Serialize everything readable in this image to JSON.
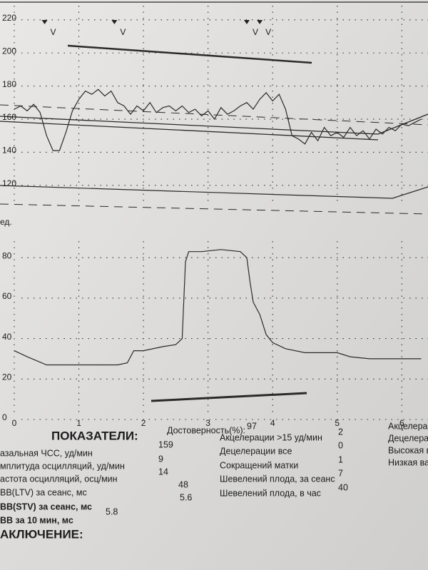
{
  "fhr_chart": {
    "type": "line",
    "color": "#2a2a2a",
    "xlim": [
      0,
      6.35
    ],
    "xticks": [
      0,
      1,
      2,
      3,
      4,
      5,
      6
    ],
    "ylim": [
      107,
      232
    ],
    "yticks": [
      120,
      140,
      160,
      180,
      200,
      220
    ],
    "grid": true,
    "x": [
      0,
      0.1,
      0.2,
      0.3,
      0.4,
      0.5,
      0.6,
      0.7,
      0.8,
      0.9,
      1,
      1.1,
      1.2,
      1.3,
      1.4,
      1.5,
      1.6,
      1.7,
      1.8,
      1.9,
      2,
      2.1,
      2.2,
      2.3,
      2.4,
      2.5,
      2.6,
      2.7,
      2.8,
      2.9,
      3,
      3.1,
      3.2,
      3.3,
      3.4,
      3.5,
      3.6,
      3.7,
      3.8,
      3.9,
      4,
      4.1,
      4.2,
      4.3,
      4.4,
      4.5,
      4.6,
      4.7,
      4.8,
      4.9,
      5,
      5.1,
      5.2,
      5.3,
      5.4,
      5.5,
      5.6,
      5.7,
      5.8,
      5.9,
      6,
      6.1,
      6.2,
      6.3
    ],
    "values": [
      166,
      168,
      165,
      169,
      164,
      150,
      141,
      141,
      152,
      165,
      172,
      177,
      175,
      178,
      174,
      177,
      170,
      168,
      163,
      168,
      165,
      170,
      164,
      167,
      168,
      165,
      168,
      164,
      166,
      162,
      165,
      160,
      167,
      163,
      165,
      168,
      170,
      166,
      172,
      176,
      171,
      175,
      166,
      150,
      148,
      145,
      152,
      147,
      155,
      150,
      152,
      149,
      155,
      150,
      153,
      148,
      154,
      151,
      155,
      153,
      157,
      156,
      158,
      160
    ],
    "event_marks": {
      "label": "V",
      "x": [
        0.47,
        1.55,
        3.6,
        3.8
      ]
    }
  },
  "toco_chart": {
    "type": "line",
    "color": "#2a2a2a",
    "ylabel": "ед.",
    "xlim": [
      0,
      6.35
    ],
    "xticks": [
      0,
      1,
      2,
      3,
      4,
      5,
      6
    ],
    "ylim": [
      0,
      91
    ],
    "yticks": [
      0,
      20,
      40,
      60,
      80
    ],
    "grid": true,
    "x": [
      0,
      0.2,
      0.5,
      0.8,
      1,
      1.3,
      1.6,
      1.75,
      1.85,
      2,
      2.3,
      2.5,
      2.6,
      2.65,
      2.7,
      2.9,
      3.2,
      3.5,
      3.6,
      3.65,
      3.7,
      3.8,
      3.9,
      4.0,
      4.2,
      4.5,
      5,
      5.2,
      5.5,
      6,
      6.3
    ],
    "values": [
      34,
      31,
      27,
      27,
      27,
      27,
      27,
      28,
      34,
      34,
      36,
      37,
      40,
      78,
      83,
      83,
      84,
      83,
      80,
      68,
      58,
      52,
      42,
      38,
      35,
      33,
      33,
      31,
      30,
      30,
      30
    ]
  },
  "indicators": {
    "title": "ПОКАЗАТЕЛИ:",
    "reliability": {
      "label": "Достоверность(%):",
      "value": 97
    },
    "left": [
      {
        "label": "азальная ЧСС, уд/мин",
        "value": 159
      },
      {
        "label": "мплитуда осцилляций, уд/мин",
        "value": 9
      },
      {
        "label": "астота осцилляций, осц/мин",
        "value": 14
      },
      {
        "label": "ВВ(LTV) за сеанс, мс",
        "value": 48
      },
      {
        "label": "ВВ(STV) за сеанс, мс",
        "value": 5.6
      },
      {
        "label": "ВВ за 10 мин, мс",
        "value": 5.8
      }
    ],
    "middle": [
      {
        "label": "Акцелерации >15 уд/мин",
        "value": 2
      },
      {
        "label": "Децелерации все",
        "value": 0
      },
      {
        "label": "Сокращений матки",
        "value": 1
      },
      {
        "label": "Шевелений плода, за сеанс",
        "value": 7
      },
      {
        "label": "Шевелений плода, в час",
        "value": 40
      }
    ],
    "right": [
      "Акцелера",
      "Децелера",
      "Высокая в",
      "Низкая ва"
    ],
    "conclusion": "АКЛЮЧЕНИЕ:"
  }
}
